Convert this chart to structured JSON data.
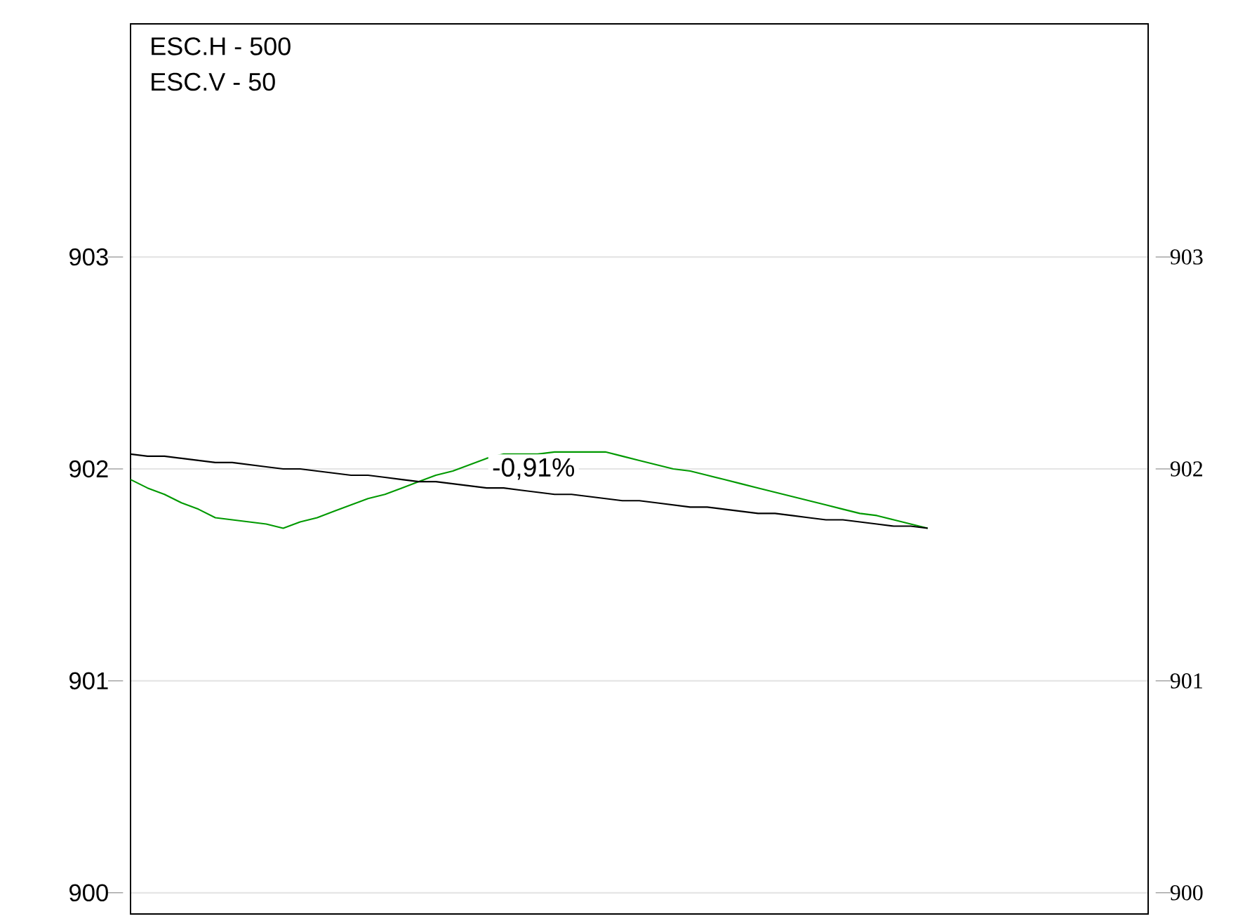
{
  "chart_data": {
    "type": "line",
    "annotations": [
      "ESC.H - 500",
      "ESC.V - 50",
      "-0,91%"
    ],
    "categories": [
      null,
      null,
      null,
      null,
      null,
      null,
      null,
      null,
      null,
      null,
      null,
      null,
      null,
      null,
      null,
      null,
      null,
      null,
      null,
      null,
      null,
      null,
      null,
      null,
      null,
      null,
      null,
      null,
      null,
      null,
      null,
      null,
      null,
      null,
      null,
      null,
      null,
      null,
      null,
      null,
      null,
      null,
      null,
      null,
      null,
      null,
      null,
      null,
      null,
      null,
      null,
      null,
      null,
      null,
      null,
      null,
      null,
      null,
      null,
      null,
      null
    ],
    "series": [
      {
        "color": "#009900",
        "values": [
          901.95,
          901.91,
          901.88,
          901.84,
          901.81,
          901.77,
          901.76,
          901.75,
          901.74,
          901.72,
          901.75,
          901.77,
          901.8,
          901.83,
          901.86,
          901.88,
          901.91,
          901.94,
          901.97,
          901.99,
          902.02,
          902.05,
          902.07,
          902.07,
          902.07,
          902.08,
          902.08,
          902.08,
          902.08,
          902.06,
          902.04,
          902.02,
          902.0,
          901.99,
          901.97,
          901.95,
          901.93,
          901.91,
          901.89,
          901.87,
          901.85,
          901.83,
          901.81,
          901.79,
          901.78,
          901.76,
          901.74,
          901.72,
          null,
          null,
          null,
          null,
          null,
          null,
          null,
          null,
          null,
          null,
          null,
          null,
          null
        ]
      },
      {
        "color": "#000000",
        "values": [
          902.07,
          902.06,
          902.06,
          902.05,
          902.04,
          902.03,
          902.03,
          902.02,
          902.01,
          902.0,
          902.0,
          901.99,
          901.98,
          901.97,
          901.97,
          901.96,
          901.95,
          901.94,
          901.94,
          901.93,
          901.92,
          901.91,
          901.91,
          901.9,
          901.89,
          901.88,
          901.88,
          901.87,
          901.86,
          901.85,
          901.85,
          901.84,
          901.83,
          901.82,
          901.82,
          901.81,
          901.8,
          901.79,
          901.79,
          901.78,
          901.77,
          901.76,
          901.76,
          901.75,
          901.74,
          901.73,
          901.73,
          901.72,
          null,
          null,
          null,
          null,
          null,
          null,
          null,
          null,
          null,
          null,
          null,
          null,
          null
        ]
      }
    ],
    "ylim": [
      899.9,
      904.1
    ],
    "yticks": [
      900,
      901,
      902,
      903
    ],
    "y2lim": [
      899.9,
      904.1
    ],
    "y2ticks": [
      900,
      901,
      902,
      903
    ],
    "tick_labels": "y",
    "grid": "y",
    "marker": "none",
    "line_style": "solid"
  }
}
